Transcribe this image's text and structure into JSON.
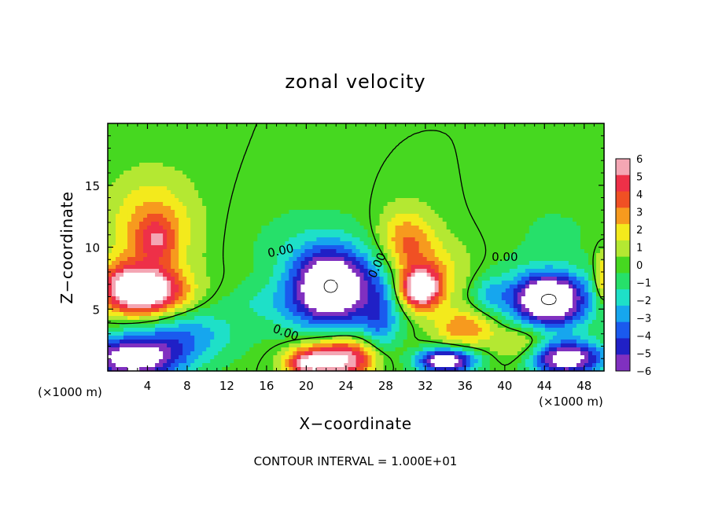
{
  "chart_data": {
    "type": "heatmap",
    "title": "zonal velocity",
    "xlabel": "X−coordinate",
    "ylabel": "Z−coordinate",
    "x_unit_left": "(×1000 m)",
    "x_unit_right": "(×1000 m)",
    "xlim": [
      0,
      50
    ],
    "ylim": [
      0,
      20
    ],
    "x_ticks": [
      4,
      8,
      12,
      16,
      20,
      24,
      28,
      32,
      36,
      40,
      44,
      48
    ],
    "x_tick_labels": [
      "4",
      "8",
      "12",
      "16",
      "20",
      "24",
      "28",
      "32",
      "36",
      "40",
      "44",
      "48"
    ],
    "y_ticks": [
      5,
      10,
      15
    ],
    "y_tick_labels": [
      "5",
      "10",
      "15"
    ],
    "footnote": "CONTOUR INTERVAL = 1.000E+01",
    "contour_labels": [
      {
        "text": "0.00",
        "x": 17.5,
        "y": 9.4,
        "angle": 12
      },
      {
        "text": "0.00",
        "x": 17.8,
        "y": 2.8,
        "angle": -20
      },
      {
        "text": "0.00",
        "x": 27.5,
        "y": 8.4,
        "angle": 65
      },
      {
        "text": "0.00",
        "x": 40.0,
        "y": 8.9,
        "angle": 0
      }
    ],
    "colorbar": {
      "levels": [
        "6",
        "5",
        "4",
        "3",
        "2",
        "1",
        "0",
        "−1",
        "−2",
        "−3",
        "−4",
        "−5",
        "−6"
      ],
      "colors": [
        "#f4a6b4",
        "#ee3048",
        "#f05024",
        "#f79a1e",
        "#f3ea1c",
        "#b4e832",
        "#46d820",
        "#26e06a",
        "#1ee0c8",
        "#16a6ee",
        "#1a5aee",
        "#2020c6",
        "#8030c0"
      ]
    },
    "background_value": 0,
    "features": [
      {
        "x": 4.5,
        "y": 11.5,
        "rx": 4.0,
        "ry": 3.8,
        "v": 3.5
      },
      {
        "x": 5.0,
        "y": 10.5,
        "rx": 1.8,
        "ry": 1.6,
        "v": 2.5
      },
      {
        "x": 4.0,
        "y": 6.4,
        "rx": 3.8,
        "ry": 1.9,
        "v": 8.0
      },
      {
        "x": 1.5,
        "y": 7.0,
        "rx": 2.5,
        "ry": 2.0,
        "v": 3.0
      },
      {
        "x": 22.5,
        "y": 7.0,
        "rx": 3.8,
        "ry": 2.8,
        "v": -8.0
      },
      {
        "x": 22.5,
        "y": 5.0,
        "rx": 5.5,
        "ry": 4.5,
        "v": -2.5
      },
      {
        "x": 27.5,
        "y": 3.5,
        "rx": 2.0,
        "ry": 4.5,
        "v": -3.0
      },
      {
        "x": 31.5,
        "y": 6.6,
        "rx": 2.0,
        "ry": 1.6,
        "v": 8.0
      },
      {
        "x": 30.0,
        "y": 10.5,
        "rx": 2.8,
        "ry": 2.5,
        "v": 3.5
      },
      {
        "x": 33.0,
        "y": 8.0,
        "rx": 3.5,
        "ry": 2.5,
        "v": 2.0
      },
      {
        "x": 44.5,
        "y": 5.8,
        "rx": 3.5,
        "ry": 2.0,
        "v": -8.0
      },
      {
        "x": 44.0,
        "y": 5.5,
        "rx": 5.0,
        "ry": 3.0,
        "v": -2.5
      },
      {
        "x": 2.5,
        "y": 1.0,
        "rx": 5.0,
        "ry": 1.8,
        "v": -8.0
      },
      {
        "x": 8.0,
        "y": 3.0,
        "rx": 5.0,
        "ry": 2.0,
        "v": -3.0
      },
      {
        "x": 23.5,
        "y": 1.0,
        "rx": 4.5,
        "ry": 1.8,
        "v": 8.0
      },
      {
        "x": 20.0,
        "y": 0.6,
        "rx": 2.0,
        "ry": 1.0,
        "v": 4.0
      },
      {
        "x": 34.0,
        "y": 0.8,
        "rx": 3.0,
        "ry": 1.0,
        "v": -8.0
      },
      {
        "x": 46.0,
        "y": 1.0,
        "rx": 4.0,
        "ry": 1.4,
        "v": -8.0
      },
      {
        "x": 36.0,
        "y": 3.5,
        "rx": 3.0,
        "ry": 1.5,
        "v": 3.5
      },
      {
        "x": 42.0,
        "y": 2.0,
        "rx": 3.0,
        "ry": 1.8,
        "v": 3.0
      },
      {
        "x": 16.0,
        "y": 5.5,
        "rx": 4.0,
        "ry": 1.5,
        "v": -1.2
      },
      {
        "x": 20.0,
        "y": 10.5,
        "rx": 6.0,
        "ry": 3.0,
        "v": -0.8
      },
      {
        "x": 45.0,
        "y": 11.5,
        "rx": 5.0,
        "ry": 2.5,
        "v": -0.6
      },
      {
        "x": 38.5,
        "y": 6.2,
        "rx": 1.8,
        "ry": 1.5,
        "v": -2.0
      },
      {
        "x": 49.8,
        "y": 7.5,
        "rx": 0.8,
        "ry": 2.0,
        "v": 3.0
      }
    ]
  }
}
